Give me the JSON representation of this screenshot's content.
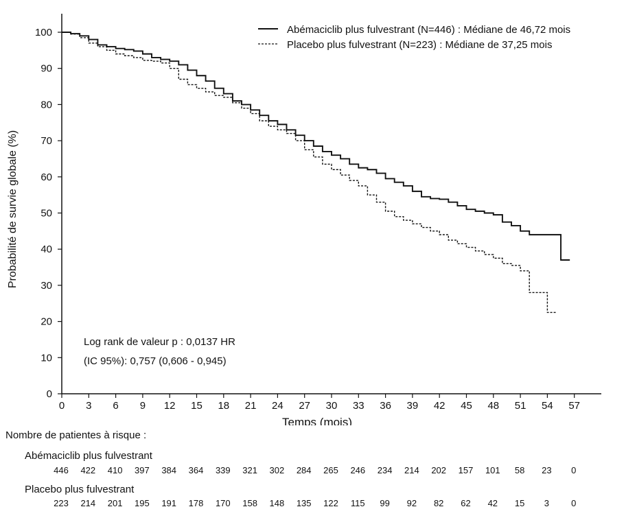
{
  "chart_data": {
    "type": "line",
    "xlabel": "Temps (mois)",
    "ylabel": "Probabilité de survie globale (%)",
    "xlim": [
      0,
      57
    ],
    "ylim": [
      0,
      100
    ],
    "x_ticks": [
      0,
      3,
      6,
      9,
      12,
      15,
      18,
      21,
      24,
      27,
      30,
      33,
      36,
      39,
      42,
      45,
      48,
      51,
      54,
      57
    ],
    "y_ticks": [
      0,
      10,
      20,
      30,
      40,
      50,
      60,
      70,
      80,
      90,
      100
    ],
    "grid": false,
    "legend_position": "top-right",
    "series": [
      {
        "name": "Abémaciclib plus fulvestrant (N=446) : Médiane de 46,72 mois",
        "style": "solid",
        "x": [
          0,
          1,
          2,
          3,
          4,
          5,
          6,
          7,
          8,
          9,
          10,
          11,
          12,
          13,
          14,
          15,
          16,
          17,
          18,
          19,
          20,
          21,
          22,
          23,
          24,
          25,
          26,
          27,
          28,
          29,
          30,
          31,
          32,
          33,
          34,
          35,
          36,
          37,
          38,
          39,
          40,
          41,
          42,
          43,
          44,
          45,
          46,
          47,
          48,
          49,
          50,
          51,
          52,
          53,
          54,
          55,
          55.5,
          56.5
        ],
        "y": [
          100,
          99.6,
          99,
          98,
          96.5,
          96,
          95.5,
          95.2,
          94.8,
          94,
          93,
          92.5,
          92,
          91,
          89.5,
          88,
          86.5,
          84.5,
          83,
          81,
          80,
          78.5,
          77,
          75.5,
          74.5,
          73,
          71.5,
          70,
          68.5,
          67,
          66,
          65,
          63.5,
          62.5,
          62,
          61,
          59.5,
          58.5,
          57.5,
          56,
          54.5,
          54,
          53.8,
          53,
          52,
          51,
          50.5,
          50,
          49.5,
          47.5,
          46.5,
          45,
          44,
          44,
          44,
          44,
          37,
          37
        ]
      },
      {
        "name": "Placebo plus fulvestrant (N=223) : Médiane de 37,25 mois",
        "style": "dashed",
        "x": [
          0,
          1,
          2,
          3,
          4,
          5,
          6,
          7,
          8,
          9,
          10,
          11,
          12,
          13,
          14,
          15,
          16,
          17,
          18,
          19,
          20,
          21,
          22,
          23,
          24,
          25,
          26,
          27,
          28,
          29,
          30,
          31,
          32,
          33,
          34,
          35,
          36,
          37,
          38,
          39,
          40,
          41,
          42,
          43,
          44,
          45,
          46,
          47,
          48,
          49,
          50,
          51,
          52,
          53,
          54,
          55
        ],
        "y": [
          100,
          99.5,
          98.5,
          97,
          96,
          95,
          94,
          93.5,
          93,
          92.2,
          92,
          91.5,
          90,
          87,
          85.5,
          84.5,
          83.5,
          82.5,
          82,
          80.5,
          79,
          77.5,
          75.5,
          74,
          73,
          72,
          70,
          67.5,
          65.5,
          63.5,
          62,
          60.5,
          59,
          57.5,
          55,
          53,
          50.5,
          49,
          48,
          47,
          46,
          45,
          44,
          42.5,
          41.5,
          40.5,
          39.5,
          38.5,
          37.5,
          36,
          35.5,
          34,
          28,
          28,
          22.5,
          22.5
        ]
      }
    ],
    "annotation": {
      "line1": "Log rank de valeur p : 0,0137 HR",
      "line2": "(IC 95%):  0,757 (0,606 - 0,945)"
    },
    "risk_table": {
      "title": "Nombre de patientes à risque :",
      "rows": [
        {
          "label": "Abémaciclib plus fulvestrant",
          "values": [
            "446",
            "422",
            "410",
            "397",
            "384",
            "364",
            "339",
            "321",
            "302",
            "284",
            "265",
            "246",
            "234",
            "214",
            "202",
            "157",
            "101",
            "58",
            "23",
            "0"
          ]
        },
        {
          "label": "Placebo plus fulvestrant",
          "values": [
            "223",
            "214",
            "201",
            "195",
            "191",
            "178",
            "170",
            "158",
            "148",
            "135",
            "122",
            "115",
            "99",
            "92",
            "82",
            "62",
            "42",
            "15",
            "3",
            "0"
          ]
        }
      ]
    }
  }
}
